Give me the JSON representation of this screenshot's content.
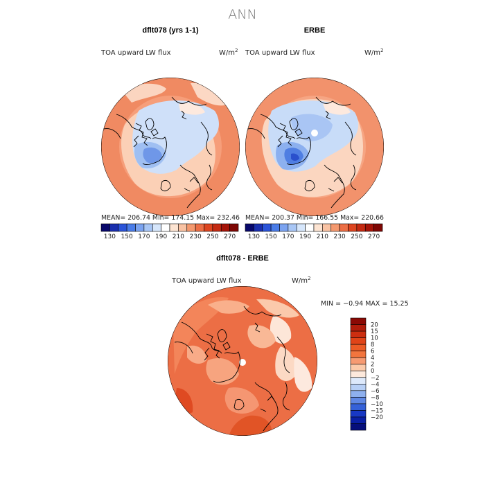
{
  "page_title": "ANN",
  "panels": [
    {
      "heading": "dflt078 (yrs 1-1)",
      "variable": "TOA upward LW flux",
      "units_base": "W/m",
      "units_exp": "2",
      "stats": "MEAN= 206.74   Min= 174.15   Max= 232.46",
      "has_polar_hole": false
    },
    {
      "heading": "ERBE",
      "variable": "TOA upward LW flux",
      "units_base": "W/m",
      "units_exp": "2",
      "stats": "MEAN= 200.37   Min= 166.55   Max= 220.66",
      "has_polar_hole": true
    }
  ],
  "abs_colorbar": {
    "labels": [
      "130",
      "150",
      "170",
      "190",
      "210",
      "230",
      "250",
      "270"
    ],
    "colors": [
      "#08086b",
      "#1a2fae",
      "#2b54d8",
      "#4a7ce8",
      "#7ba3f0",
      "#a8c6f5",
      "#d6e6fb",
      "#ffffff",
      "#fde4d2",
      "#f9c3a4",
      "#f4996f",
      "#ec6e45",
      "#dd4520",
      "#c42a12",
      "#a51408",
      "#7e0704"
    ]
  },
  "diff_panel": {
    "heading": "dflt078 - ERBE",
    "variable": "TOA upward LW flux",
    "units_base": "W/m",
    "units_exp": "2",
    "stats": "MIN =   −0.94  MAX =   15.25"
  },
  "diff_colorbar": {
    "labels": [
      "20",
      "15",
      "10",
      "8",
      "6",
      "4",
      "2",
      "0",
      "−2",
      "−4",
      "−6",
      "−8",
      "−10",
      "−15",
      "−20"
    ],
    "colors": [
      "#8b0a05",
      "#b11d0b",
      "#cc2e10",
      "#e04418",
      "#ec5c26",
      "#f2753e",
      "#f69a72",
      "#fbcaaa",
      "#fde9dc",
      "#dde9fb",
      "#b7cff5",
      "#8eb0ee",
      "#6088e4",
      "#3561d8",
      "#1838c4",
      "#0a1fa5",
      "#060e7b"
    ]
  },
  "icons": {
    "map_projection": "north-polar-stereographic-globe-icon"
  }
}
